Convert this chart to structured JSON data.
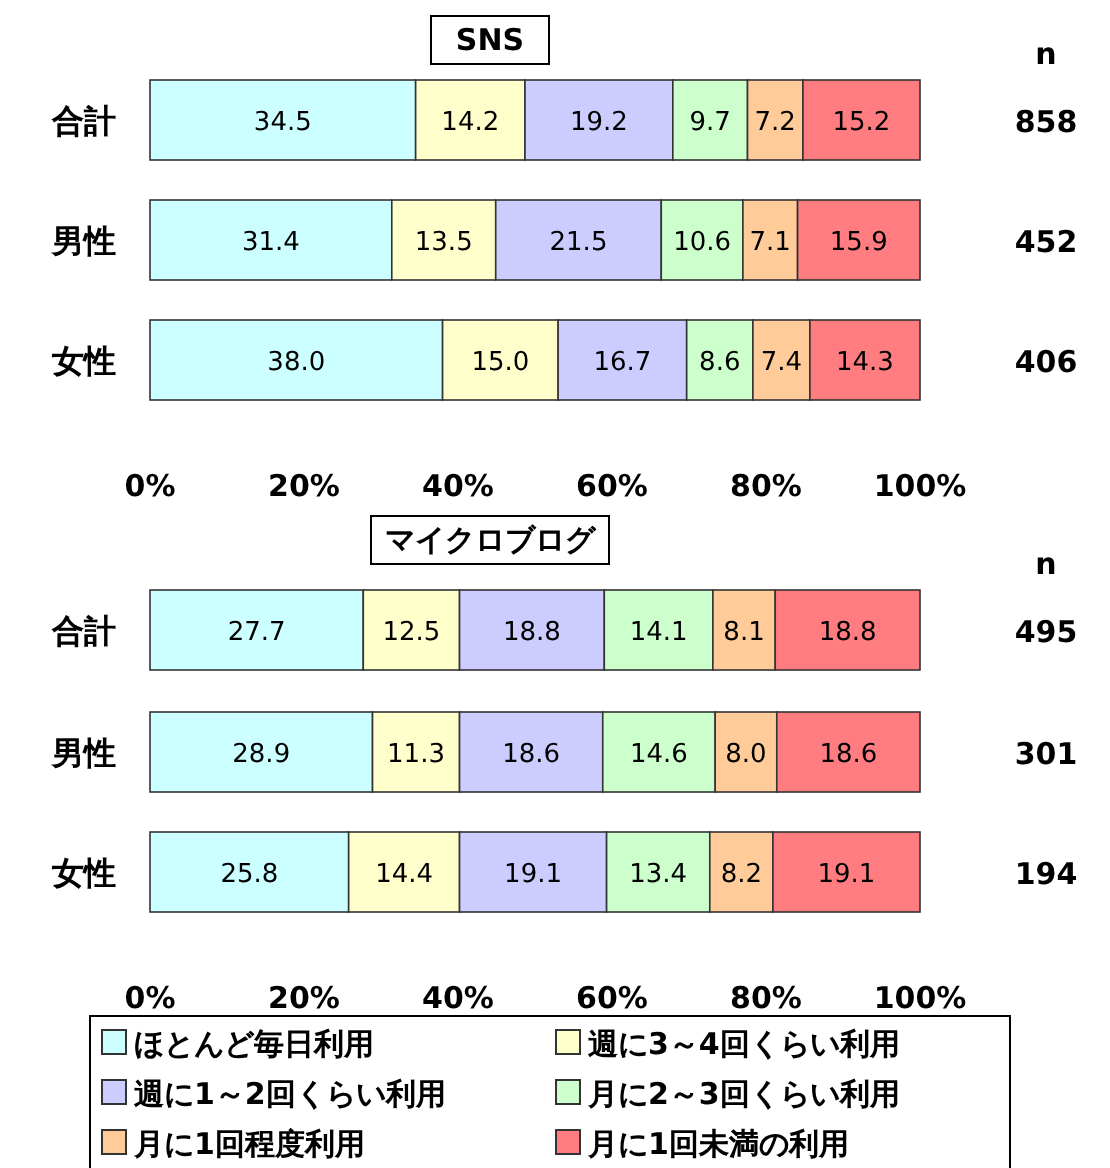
{
  "chart_data": [
    {
      "type": "bar",
      "orientation": "horizontal",
      "stacked": true,
      "title": "SNS",
      "categories": [
        "合計",
        "男性",
        "女性"
      ],
      "series": [
        {
          "color": "#ccffff",
          "values": [
            34.5,
            31.4,
            38.0
          ],
          "value_labels": [
            "34.5",
            "31.4",
            "38.0"
          ]
        },
        {
          "color": "#ffffcc",
          "values": [
            14.2,
            13.5,
            15.0
          ],
          "value_labels": [
            "14.2",
            "13.5",
            "15.0"
          ]
        },
        {
          "color": "#ccccff",
          "values": [
            19.2,
            21.5,
            16.7
          ],
          "value_labels": [
            "19.2",
            "21.5",
            "16.7"
          ]
        },
        {
          "color": "#ccffcc",
          "values": [
            9.7,
            10.6,
            8.6
          ],
          "value_labels": [
            "9.7",
            "10.6",
            "8.6"
          ]
        },
        {
          "color": "#ffcc99",
          "values": [
            7.2,
            7.1,
            7.4
          ],
          "value_labels": [
            "7.2",
            "7.1",
            "7.4"
          ]
        },
        {
          "color": "#ff7c80",
          "values": [
            15.2,
            15.9,
            14.3
          ],
          "value_labels": [
            "15.2",
            "15.9",
            "14.3"
          ]
        }
      ],
      "xlim": [
        0,
        100
      ],
      "xticks": [
        {
          "value": 0,
          "label": "0%"
        },
        {
          "value": 20,
          "label": "20%"
        },
        {
          "value": 40,
          "label": "40%"
        },
        {
          "value": 60,
          "label": "60%"
        },
        {
          "value": 80,
          "label": "80%"
        },
        {
          "value": 100,
          "label": "100%"
        }
      ],
      "annotations": [
        "n",
        "858",
        "452",
        "406"
      ],
      "legend": false
    },
    {
      "type": "bar",
      "orientation": "horizontal",
      "stacked": true,
      "title": "マイクロブログ",
      "categories": [
        "合計",
        "男性",
        "女性"
      ],
      "series": [
        {
          "name": "ほとんど毎日利用",
          "color": "#ccffff",
          "values": [
            27.7,
            28.9,
            25.8
          ],
          "value_labels": [
            "27.7",
            "28.9",
            "25.8"
          ]
        },
        {
          "name": "週に3～4回くらい利用",
          "color": "#ffffcc",
          "values": [
            12.5,
            11.3,
            14.4
          ],
          "value_labels": [
            "12.5",
            "11.3",
            "14.4"
          ]
        },
        {
          "name": "週に1～2回くらい利用",
          "color": "#ccccff",
          "values": [
            18.8,
            18.6,
            19.1
          ],
          "value_labels": [
            "18.8",
            "18.6",
            "19.1"
          ]
        },
        {
          "name": "月に2～3回くらい利用",
          "color": "#ccffcc",
          "values": [
            14.1,
            14.6,
            13.4
          ],
          "value_labels": [
            "14.1",
            "14.6",
            "13.4"
          ]
        },
        {
          "name": "月に1回程度利用",
          "color": "#ffcc99",
          "values": [
            8.1,
            8.0,
            8.2
          ],
          "value_labels": [
            "8.1",
            "8.0",
            "8.2"
          ]
        },
        {
          "name": "月に1回未満の利用",
          "color": "#ff7c80",
          "values": [
            18.8,
            18.6,
            19.1
          ],
          "value_labels": [
            "18.8",
            "18.6",
            "19.1"
          ]
        }
      ],
      "xlim": [
        0,
        100
      ],
      "xticks": [
        {
          "value": 0,
          "label": "0%"
        },
        {
          "value": 20,
          "label": "20%"
        },
        {
          "value": 40,
          "label": "40%"
        },
        {
          "value": 60,
          "label": "60%"
        },
        {
          "value": 80,
          "label": "80%"
        },
        {
          "value": 100,
          "label": "100%"
        }
      ],
      "annotations": [
        "n",
        "495",
        "301",
        "194"
      ],
      "legend": "bottom"
    }
  ]
}
